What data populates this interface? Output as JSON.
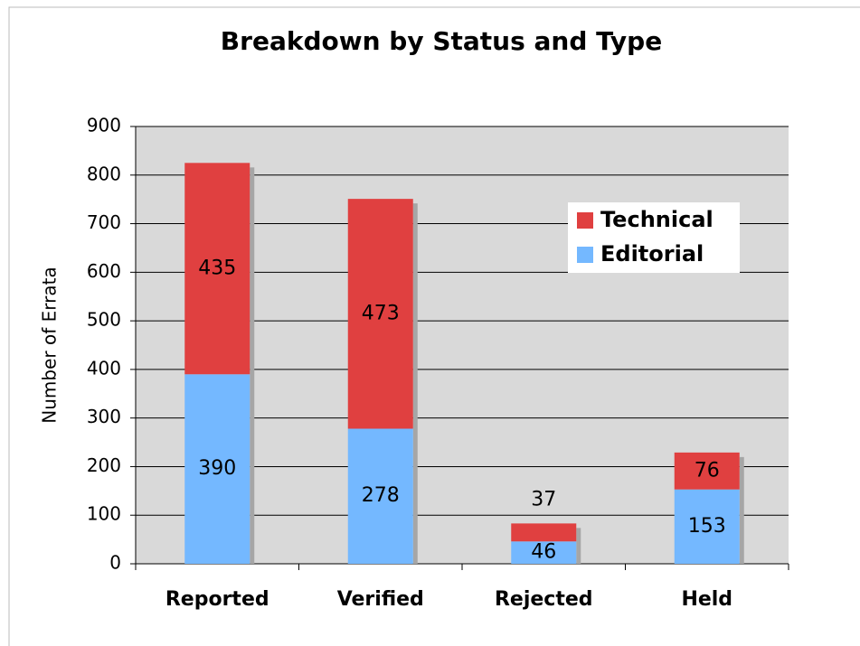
{
  "chart_data": {
    "type": "stacked_bar",
    "title": "Breakdown by Status and Type",
    "y_label": "Number of Errata",
    "categories": [
      "Reported",
      "Verified",
      "Rejected",
      "Held"
    ],
    "series": [
      {
        "name": "Technical",
        "color": "#e04040",
        "values": [
          435,
          473,
          37,
          76
        ]
      },
      {
        "name": "Editorial",
        "color": "#74b8ff",
        "values": [
          390,
          278,
          46,
          153
        ]
      }
    ],
    "ylim": [
      0,
      900
    ],
    "yticks": [
      0,
      100,
      200,
      300,
      400,
      500,
      600,
      700,
      800,
      900
    ],
    "grid": true,
    "legend": "upper right"
  }
}
